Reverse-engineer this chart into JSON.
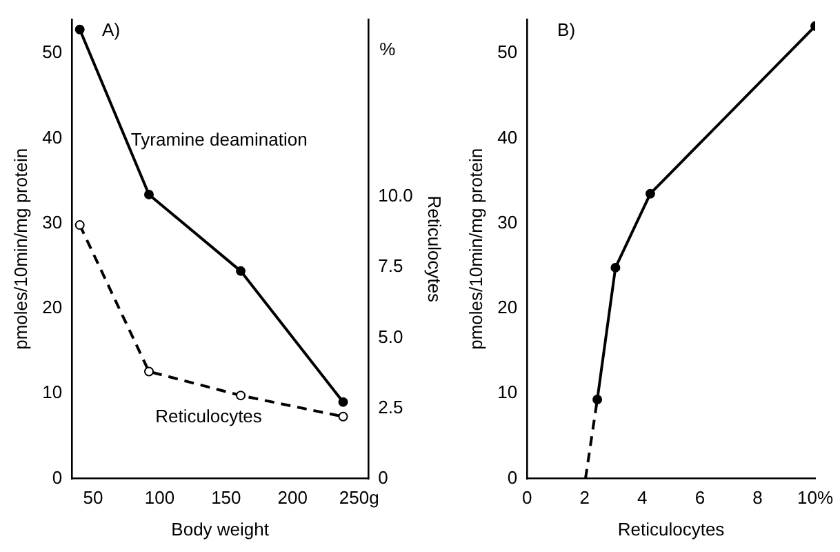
{
  "chart_data": [
    {
      "type": "line",
      "title": "A)",
      "xlabel": "Body weight",
      "ylabel": "pmoles/10min/mg protein",
      "y2label": "Reticulocytes",
      "annotations": [
        "%"
      ],
      "x": [
        40,
        92,
        161,
        238
      ],
      "series": [
        {
          "name": "Tyramine deamination",
          "color": "#000000",
          "values": [
            52.8,
            33.4,
            24.4,
            9.0
          ],
          "marker": "circle",
          "line_style": "solid"
        },
        {
          "name": "Reticulocytes",
          "color": "#000000",
          "values": [
            9.0,
            3.8,
            2.95,
            2.2
          ],
          "axis": "y2",
          "marker": "circle",
          "line_style": "dashed"
        }
      ],
      "xlim": [
        34,
        257
      ],
      "xticks": [
        50,
        100,
        150,
        200,
        {
          "value": 250,
          "label": "250g"
        }
      ],
      "ylim": [
        0,
        54
      ],
      "yticks": [
        0,
        10,
        20,
        30,
        40,
        50
      ],
      "y2lim": [
        0,
        16.3
      ],
      "y2ticks": [
        0,
        {
          "value": 2.5,
          "label": "2.5"
        },
        {
          "value": 5,
          "label": "5.0"
        },
        {
          "value": 7.5,
          "label": "7.5"
        },
        {
          "value": 10,
          "label": "10.0"
        }
      ],
      "grid": false,
      "legend": false
    },
    {
      "type": "line",
      "title": "B)",
      "xlabel": "Reticulocytes",
      "ylabel": "pmoles/10min/mg protein",
      "series": [
        {
          "color": "#000000",
          "x": [
            2.44,
            3.07,
            4.28,
            10
          ],
          "values": [
            9.3,
            24.8,
            33.5,
            53.2
          ],
          "marker": "circle",
          "line_style": "solid"
        },
        {
          "color": "#000000",
          "x": [
            2.03,
            2.44
          ],
          "values": [
            0,
            9.3
          ],
          "marker": "none",
          "line_style": "dashed"
        }
      ],
      "xlim": [
        0,
        10
      ],
      "xticks": [
        0,
        2,
        4,
        6,
        8,
        {
          "value": 10,
          "label": "10%"
        }
      ],
      "ylim": [
        0,
        54
      ],
      "yticks": [
        0,
        10,
        20,
        30,
        40,
        50
      ],
      "grid": false,
      "legend": false
    }
  ]
}
